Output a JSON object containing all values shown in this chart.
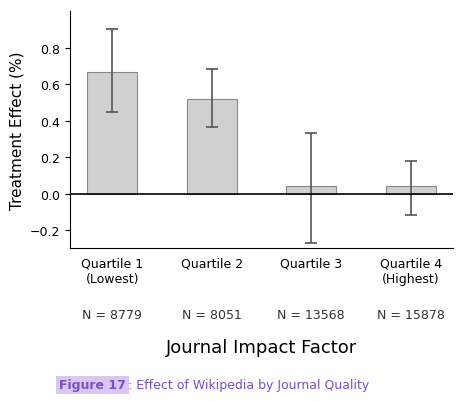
{
  "categories": [
    "Quartile 1\n(Lowest)",
    "Quartile 2",
    "Quartile 3",
    "Quartile 4\n(Highest)"
  ],
  "n_labels": [
    "N = 8779",
    "N = 8051",
    "N = 13568",
    "N = 15878"
  ],
  "values": [
    0.665,
    0.52,
    0.04,
    0.04
  ],
  "yerr_lower": [
    0.22,
    0.155,
    0.31,
    0.16
  ],
  "yerr_upper": [
    0.235,
    0.16,
    0.29,
    0.14
  ],
  "bar_color": "#d0d0d0",
  "bar_edgecolor": "#888888",
  "error_color": "#555555",
  "hline_color": "#000000",
  "xlabel": "Journal Impact Factor",
  "ylabel": "Treatment Effect (%)",
  "ylim": [
    -0.3,
    1.0
  ],
  "yticks": [
    -0.2,
    0.0,
    0.2,
    0.4,
    0.6,
    0.8
  ],
  "figure_caption_bold": "Figure 17",
  "figure_caption_rest": ": Effect of Wikipedia by Journal Quality",
  "caption_color": "#7B4FC8",
  "caption_box_color": "#D8C8F0",
  "background_color": "#ffffff",
  "axis_fontsize": 11,
  "tick_fontsize": 9,
  "n_label_fontsize": 9,
  "xlabel_fontsize": 13,
  "caption_fontsize": 9
}
